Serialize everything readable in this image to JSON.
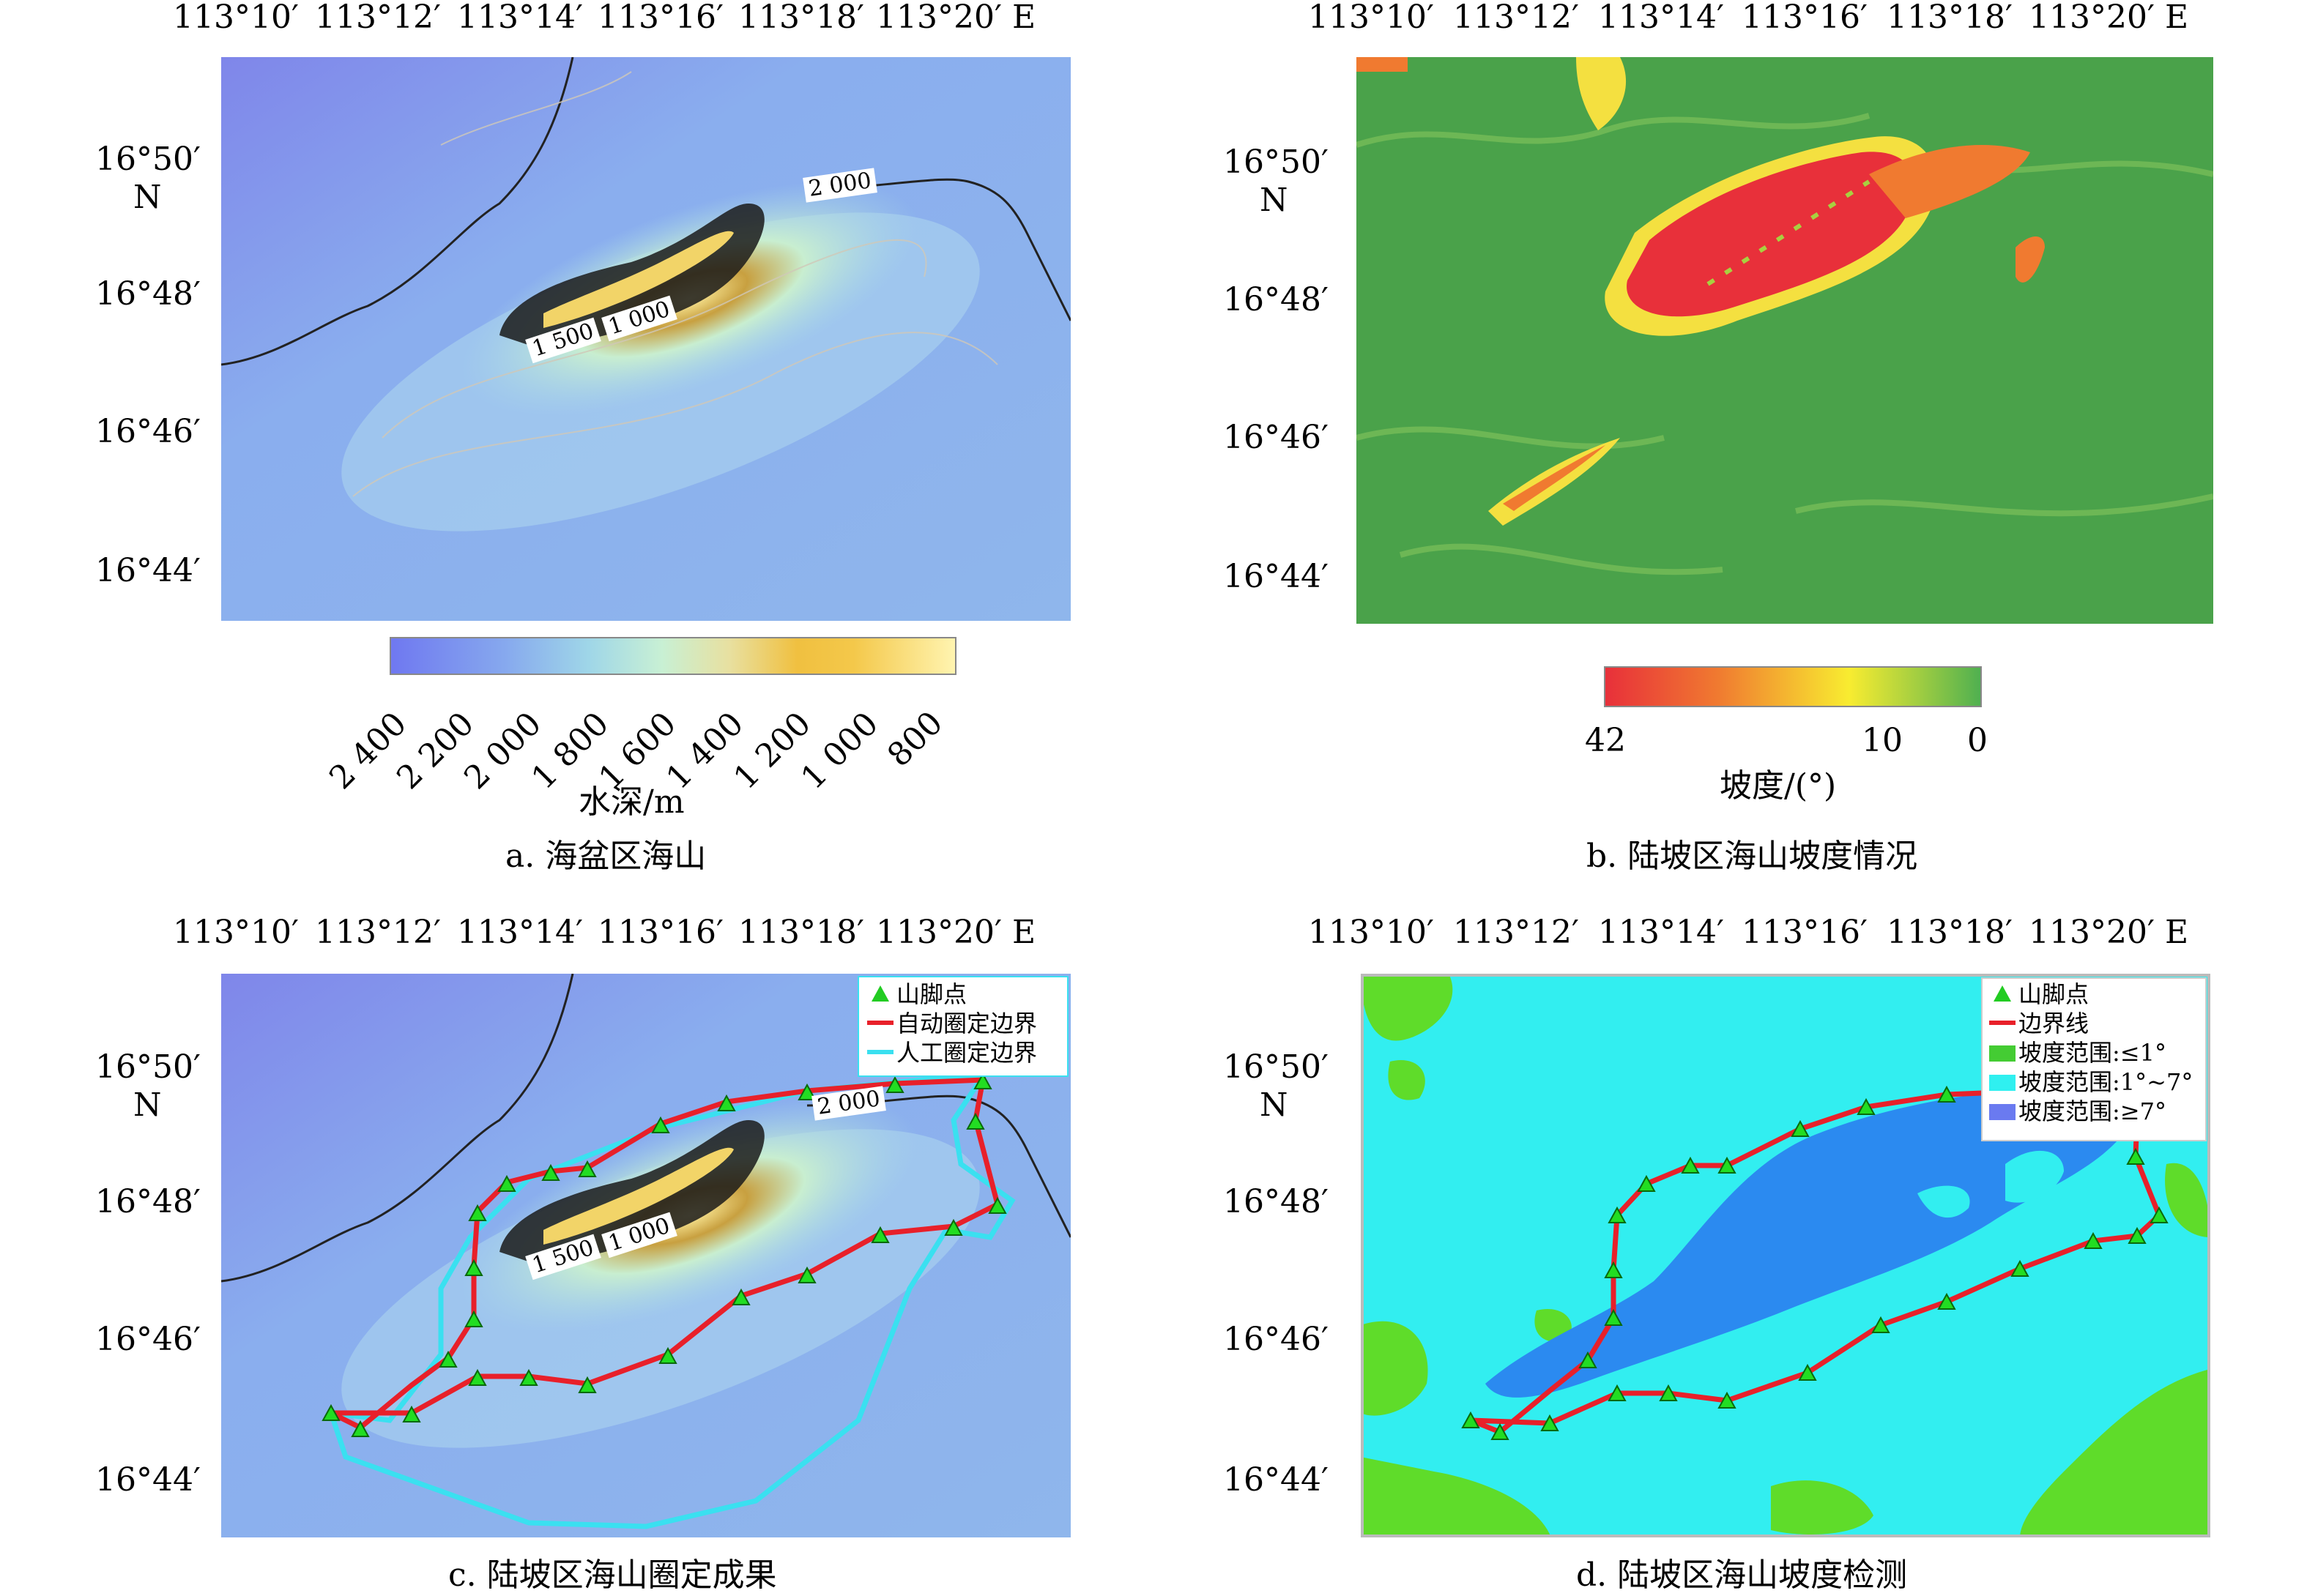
{
  "panels": {
    "a": {
      "caption": "a. 海盆区海山",
      "top_ticks": [
        "113°10′",
        "113°12′",
        "113°14′",
        "113°16′",
        "113°18′",
        "113°20′ E"
      ],
      "left_ticks": [
        "16°50′",
        "N",
        "16°48′",
        "16°46′",
        "16°44′"
      ],
      "contour_labels": [
        "2 000",
        "1 500",
        "1 000"
      ],
      "colorbar": {
        "title": "水深/m",
        "ticks": [
          "2 400",
          "2 200",
          "2 000",
          "1 800",
          "1 600",
          "1 400",
          "1 200",
          "1 000",
          "800"
        ],
        "colors": [
          "#6f78f0",
          "#86a8ee",
          "#9fd6e8",
          "#c8f0d4",
          "#e8e0a0",
          "#f0c040",
          "#f4c84a",
          "#fff4b0"
        ]
      }
    },
    "b": {
      "caption": "b. 陆坡区海山坡度情况",
      "top_ticks": [
        "113°10′",
        "113°12′",
        "113°14′",
        "113°16′",
        "113°18′",
        "113°20′ E"
      ],
      "left_ticks": [
        "16°50′",
        "N",
        "16°48′",
        "16°46′",
        "16°44′"
      ],
      "colorbar": {
        "title": "坡度/(°)",
        "ticks": [
          "42",
          "10",
          "0"
        ],
        "colors": [
          "#e8303a",
          "#f0a030",
          "#f8ec30",
          "#50b050"
        ]
      }
    },
    "c": {
      "caption": "c. 陆坡区海山圈定成果",
      "top_ticks": [
        "113°10′",
        "113°12′",
        "113°14′",
        "113°16′",
        "113°18′",
        "113°20′ E"
      ],
      "left_ticks": [
        "16°50′",
        "N",
        "16°48′",
        "16°46′",
        "16°44′"
      ],
      "contour_labels": [
        "2 000",
        "1 500",
        "1 000"
      ],
      "legend": [
        "山脚点",
        "自动圈定边界",
        "人工圈定边界"
      ],
      "legend_colors": [
        "#22cc22",
        "#e8202a",
        "#3ae0f0"
      ]
    },
    "d": {
      "caption": "d. 陆坡区海山坡度检测",
      "top_ticks": [
        "113°10′",
        "113°12′",
        "113°14′",
        "113°16′",
        "113°18′",
        "113°20′ E"
      ],
      "left_ticks": [
        "16°50′",
        "N",
        "16°48′",
        "16°46′",
        "16°44′"
      ],
      "legend": [
        "山脚点",
        "边界线",
        "坡度范围:≤1°",
        "坡度范围:1°~7°",
        "坡度范围:≥7°"
      ],
      "legend_colors": [
        "#22cc22",
        "#e8202a",
        "#44cc33",
        "#2ff0f0",
        "#6a7af0"
      ]
    }
  }
}
